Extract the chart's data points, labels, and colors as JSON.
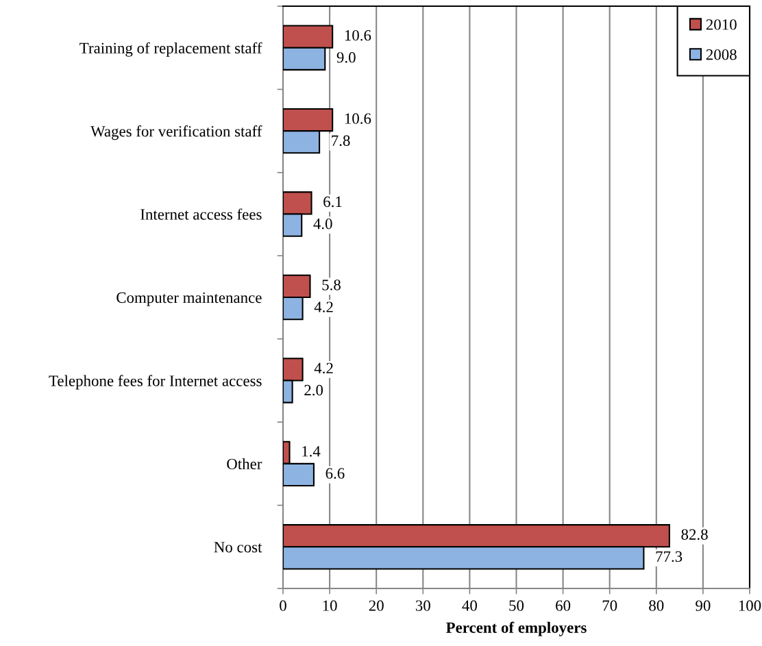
{
  "chart_data": {
    "type": "bar",
    "orientation": "horizontal",
    "categories": [
      "Training of replacement staff",
      "Wages for verification staff",
      "Internet access fees",
      "Computer maintenance",
      "Telephone fees for Internet access",
      "Other",
      "No cost"
    ],
    "series": [
      {
        "name": "2010",
        "color": "#c0504d",
        "values": [
          10.6,
          10.6,
          6.1,
          5.8,
          4.2,
          1.4,
          82.8
        ],
        "value_labels": [
          "10.6",
          "10.6",
          "6.1",
          "5.8",
          "4.2",
          "1.4",
          "82.8"
        ]
      },
      {
        "name": "2008",
        "color": "#8db3e2",
        "values": [
          9.0,
          7.8,
          4.0,
          4.2,
          2.0,
          6.6,
          77.3
        ],
        "value_labels": [
          "9.0",
          "7.8",
          "4.0",
          "4.2",
          "2.0",
          "6.6",
          "77.3"
        ]
      }
    ],
    "xlabel": "Percent of employers",
    "xlim": [
      0,
      100
    ],
    "xticks": [
      0,
      10,
      20,
      30,
      40,
      50,
      60,
      70,
      80,
      90,
      100
    ],
    "grid": "x",
    "legend": "top right"
  }
}
